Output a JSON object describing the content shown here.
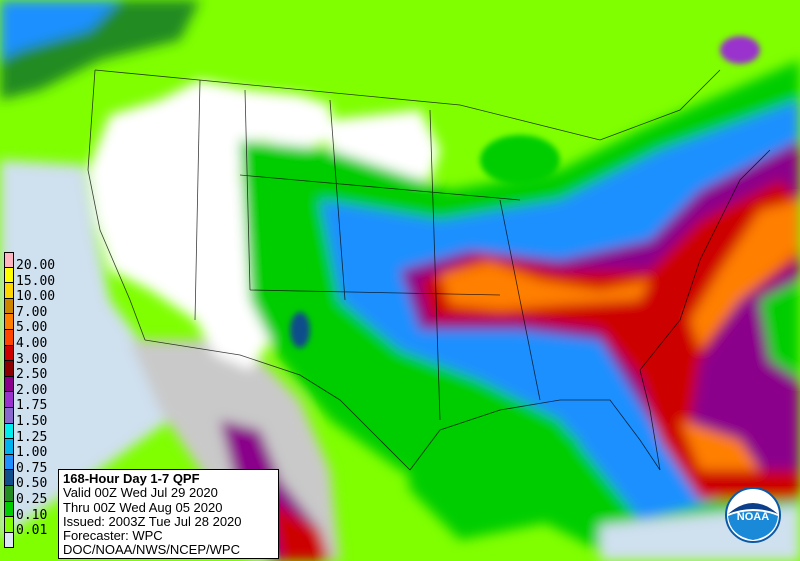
{
  "title": "168-Hour Day 1-7 QPF",
  "info": {
    "valid": "Valid 00Z Wed Jul 29 2020",
    "thru": "Thru 00Z Wed Aug 05 2020",
    "issued": "Issued: 2003Z Tue Jul 28 2020",
    "forecaster": "Forecaster: WPC",
    "agency": "DOC/NOAA/NWS/NCEP/WPC"
  },
  "legend": [
    {
      "label": "20.00",
      "color": "#ffb6c1"
    },
    {
      "label": "15.00",
      "color": "#ffff00"
    },
    {
      "label": "10.00",
      "color": "#ffd700"
    },
    {
      "label": "7.00",
      "color": "#cd8500"
    },
    {
      "label": "5.00",
      "color": "#ff7f00"
    },
    {
      "label": "4.00",
      "color": "#ff4500"
    },
    {
      "label": "3.00",
      "color": "#cd0000"
    },
    {
      "label": "2.50",
      "color": "#8b0000"
    },
    {
      "label": "2.00",
      "color": "#8b008b"
    },
    {
      "label": "1.75",
      "color": "#9a32cd"
    },
    {
      "label": "1.50",
      "color": "#8968cd"
    },
    {
      "label": "1.25",
      "color": "#00eeee"
    },
    {
      "label": "1.00",
      "color": "#00b2ee"
    },
    {
      "label": "0.75",
      "color": "#1e90ff"
    },
    {
      "label": "0.50",
      "color": "#104e8b"
    },
    {
      "label": "0.25",
      "color": "#228b22"
    },
    {
      "label": "0.10",
      "color": "#00cd00"
    },
    {
      "label": "0.01",
      "color": "#7fff00"
    },
    {
      "label": "",
      "color": "#dbe7f3"
    }
  ],
  "logo": {
    "text": "NOAA"
  }
}
